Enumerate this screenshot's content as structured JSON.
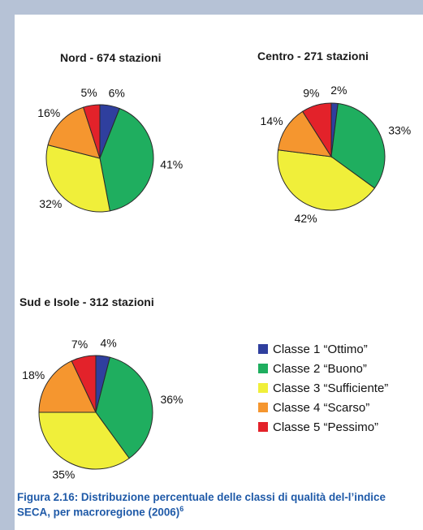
{
  "chart_data": [
    {
      "type": "pie",
      "title": "Nord - 674 stazioni",
      "categories": [
        "Classe 1 “Ottimo”",
        "Classe 2 “Buono”",
        "Classe 3 “Sufficiente”",
        "Classe 4 “Scarso”",
        "Classe 5 “Pessimo”"
      ],
      "values": [
        6,
        41,
        32,
        16,
        5
      ],
      "labels": [
        "6%",
        "41%",
        "32%",
        "16%",
        "5%"
      ]
    },
    {
      "type": "pie",
      "title": "Centro - 271 stazioni",
      "categories": [
        "Classe 1 “Ottimo”",
        "Classe 2 “Buono”",
        "Classe 3 “Sufficiente”",
        "Classe 4 “Scarso”",
        "Classe 5 “Pessimo”"
      ],
      "values": [
        2,
        33,
        42,
        14,
        9
      ],
      "labels": [
        "2%",
        "33%",
        "42%",
        "14%",
        "9%"
      ]
    },
    {
      "type": "pie",
      "title": "Sud e Isole - 312 stazioni",
      "categories": [
        "Classe 1 “Ottimo”",
        "Classe 2 “Buono”",
        "Classe 3 “Sufficiente”",
        "Classe 4 “Scarso”",
        "Classe 5 “Pessimo”"
      ],
      "values": [
        4,
        36,
        35,
        18,
        7
      ],
      "labels": [
        "4%",
        "36%",
        "35%",
        "18%",
        "7%"
      ]
    }
  ],
  "legend": [
    {
      "label": "Classe 1 “Ottimo”",
      "color": "#2f3f9e"
    },
    {
      "label": "Classe 2 “Buono”",
      "color": "#1fae5f"
    },
    {
      "label": "Classe 3 “Sufficiente”",
      "color": "#f0ef3a"
    },
    {
      "label": "Classe 4 “Scarso”",
      "color": "#f5962f"
    },
    {
      "label": "Classe 5 “Pessimo”",
      "color": "#e3222a"
    }
  ],
  "caption": {
    "text": "Figura 2.16: Distribuzione percentuale delle classi di qualità del-l’indice SECA, per macroregione (2006)",
    "footnote": "6"
  }
}
